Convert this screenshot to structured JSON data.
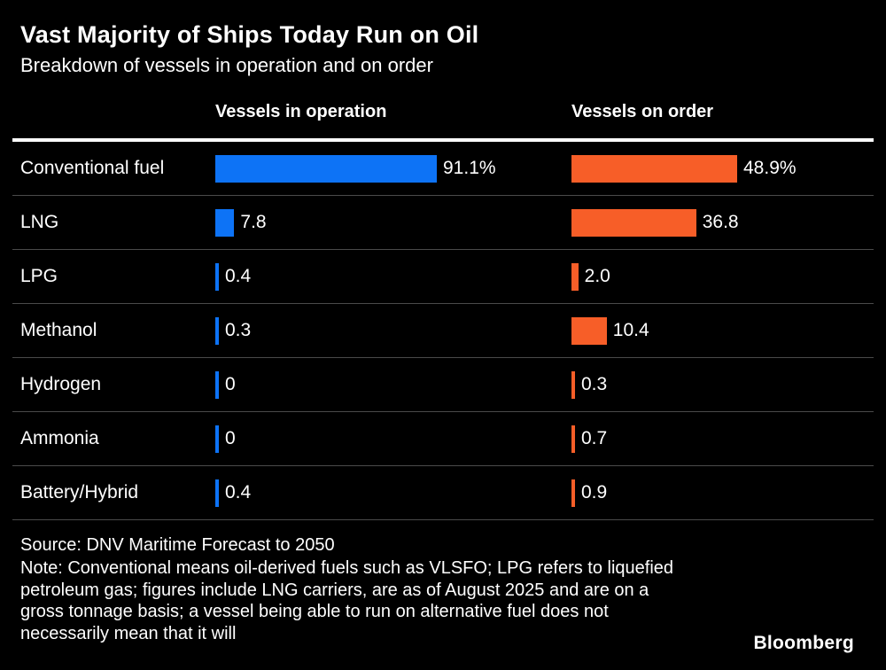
{
  "title": "Vast Majority of Ships Today Run on Oil",
  "subtitle": "Breakdown of vessels in operation and on order",
  "columns": [
    {
      "label": "Vessels in operation"
    },
    {
      "label": "Vessels on order"
    }
  ],
  "chart_data": {
    "type": "bar",
    "orientation": "horizontal",
    "title": "Vast Majority of Ships Today Run on Oil",
    "subtitle": "Breakdown of vessels in operation and on order",
    "categories": [
      "Conventional fuel",
      "LNG",
      "LPG",
      "Methanol",
      "Hydrogen",
      "Ammonia",
      "Battery/Hybrid"
    ],
    "series": [
      {
        "name": "Vessels in operation",
        "color": "#0d73f6",
        "values": [
          91.1,
          7.8,
          0.4,
          0.3,
          0,
          0,
          0.4
        ],
        "labels": [
          "91.1%",
          "7.8",
          "0.4",
          "0.3",
          "0",
          "0",
          "0.4"
        ]
      },
      {
        "name": "Vessels on order",
        "color": "#f75e28",
        "values": [
          48.9,
          36.8,
          2.0,
          10.4,
          0.3,
          0.7,
          0.9
        ],
        "labels": [
          "48.9%",
          "36.8",
          "2.0",
          "10.4",
          "0.3",
          "0.7",
          "0.9"
        ]
      }
    ],
    "value_axis_max_per_series": [
      91.1,
      48.9
    ],
    "grid": "row-separators",
    "legend_position": "column-headers"
  },
  "source": "Source: DNV Maritime Forecast to 2050",
  "note": "Note: Conventional means oil-derived fuels such as VLSFO; LPG refers to liquefied petroleum gas; figures include LNG carriers, are as of August 2025 and are on a gross tonnage basis; a vessel being able to run on alternative fuel does not necessarily mean that it will",
  "logo": "Bloomberg"
}
